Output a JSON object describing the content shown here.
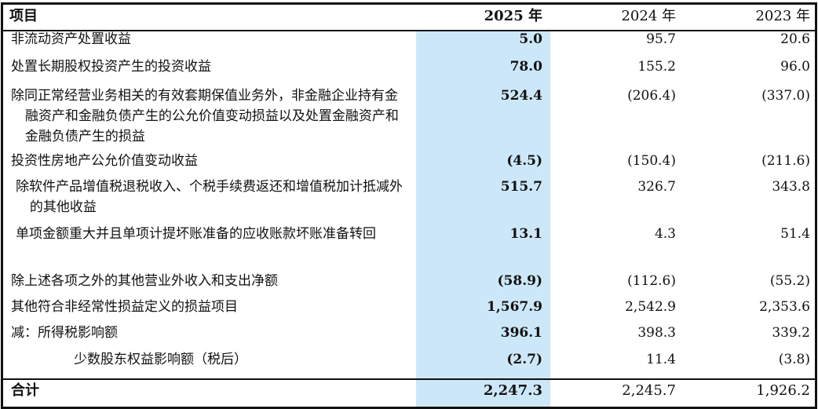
{
  "header": {
    "item": "项目",
    "y2025": "2025 年",
    "y2024": "2024 年",
    "y2023": "2023 年"
  },
  "rows": [
    {
      "label": "非流动资产处置收益",
      "v2025": "5.0",
      "v2024": "95.7",
      "v2023": "20.6"
    },
    {
      "label": "处置长期股权投资产生的投资收益",
      "v2025": "78.0",
      "v2024": "155.2",
      "v2023": "96.0"
    },
    {
      "label": "除同正常经营业务相关的有效套期保值业务外，非金融企业持有金融资产和金融负债产生的公允价值变动损益以及处置金融资产和金融负债产生的损益",
      "v2025": "524.4",
      "v2024": "(206.4)",
      "v2023": "(337.0)"
    },
    {
      "label": "投资性房地产公允价值变动收益",
      "v2025": "(4.5)",
      "v2024": "(150.4)",
      "v2023": "(211.6)"
    },
    {
      "label": "除软件产品增值税退税收入、个税手续费返还和增值税加计抵减外的其他收益",
      "v2025": "515.7",
      "v2024": "326.7",
      "v2023": "343.8"
    },
    {
      "label": "单项金额重大并且单项计提坏账准备的应收账款坏账准备转回",
      "v2025": "13.1",
      "v2024": "4.3",
      "v2023": "51.4"
    },
    {
      "label": "除上述各项之外的其他营业外收入和支出净额",
      "v2025": "(58.9)",
      "v2024": "(112.6)",
      "v2023": "(55.2)"
    },
    {
      "label": "其他符合非经常性损益定义的损益项目",
      "v2025": "1,567.9",
      "v2024": "2,542.9",
      "v2023": "2,353.6"
    },
    {
      "label": "减：所得税影响额",
      "v2025": "396.1",
      "v2024": "398.3",
      "v2023": "339.2"
    },
    {
      "label": "少数股东权益影响额（税后）",
      "v2025": "(2.7)",
      "v2024": "11.4",
      "v2023": "(3.8)"
    }
  ],
  "total": {
    "label": "合计",
    "v2025": "2,247.3",
    "v2024": "2,245.7",
    "v2023": "1,926.2"
  },
  "colors": {
    "highlight": "#cce8f8",
    "border": "#111111"
  }
}
